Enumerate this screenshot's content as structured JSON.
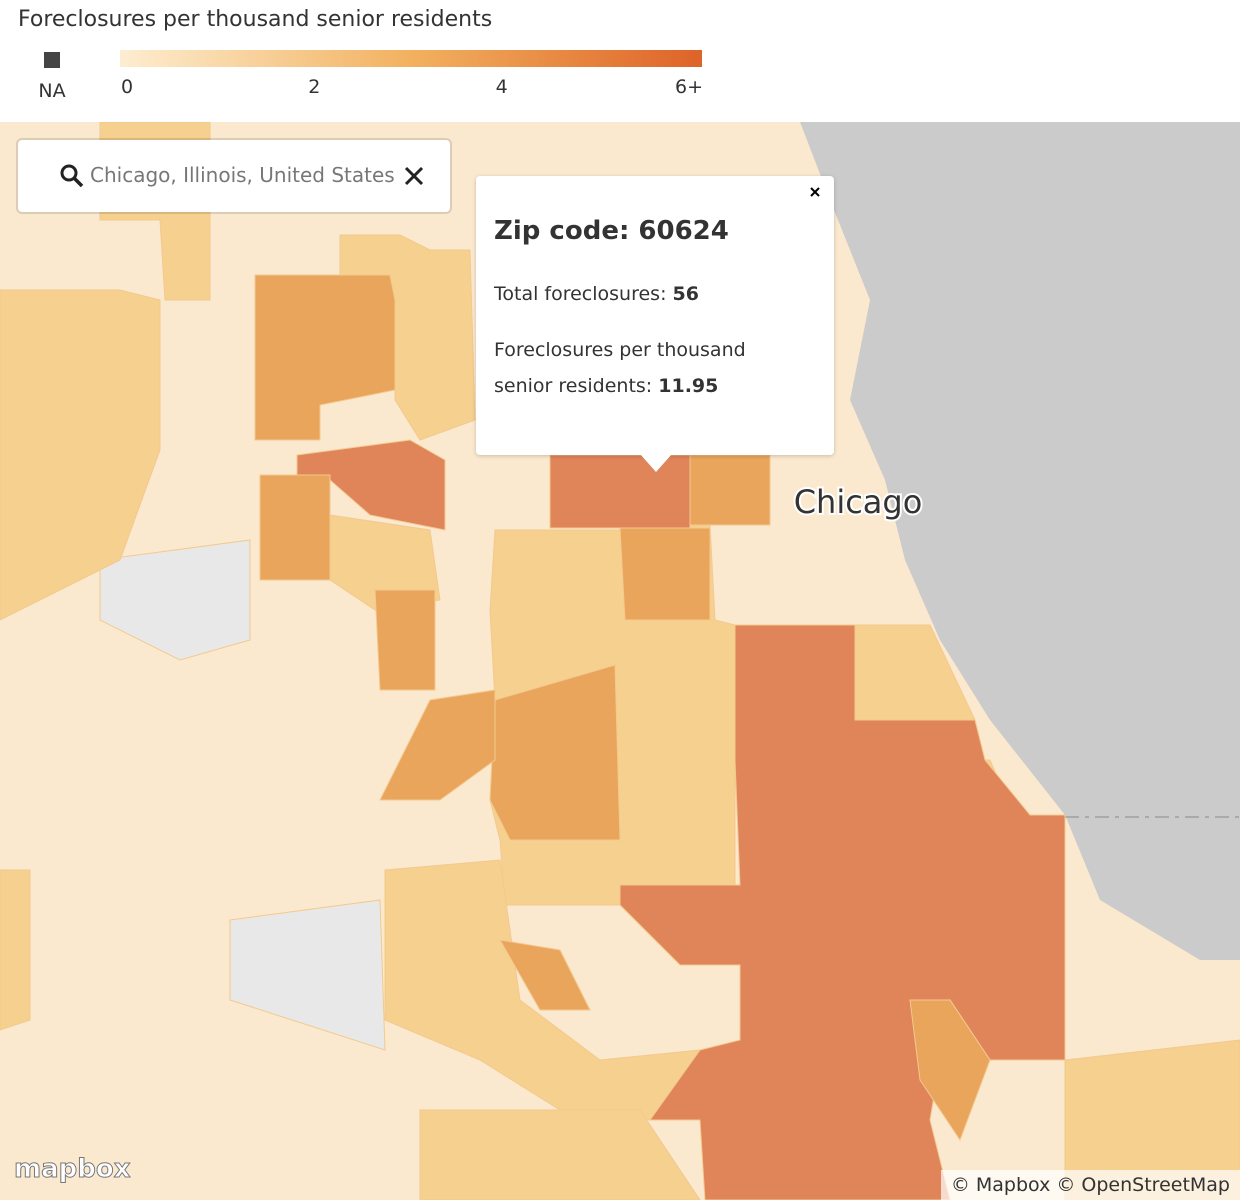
{
  "header": {
    "title": "Foreclosures per thousand senior residents",
    "legend": {
      "na_label": "NA",
      "ticks": [
        0,
        2,
        4,
        {
          "value": 6,
          "label": "6+"
        }
      ]
    }
  },
  "search": {
    "query": "Chicago, Illinois, United States"
  },
  "popup": {
    "title": "Zip code: 60624",
    "total_label": "Total foreclosures:",
    "total_value": 56,
    "rate_label": "Foreclosures per thousand senior residents:",
    "rate_value": 11.95
  },
  "map": {
    "city_label": "Chicago",
    "logo": "mapbox",
    "attribution": "© Mapbox © OpenStreetMap"
  }
}
